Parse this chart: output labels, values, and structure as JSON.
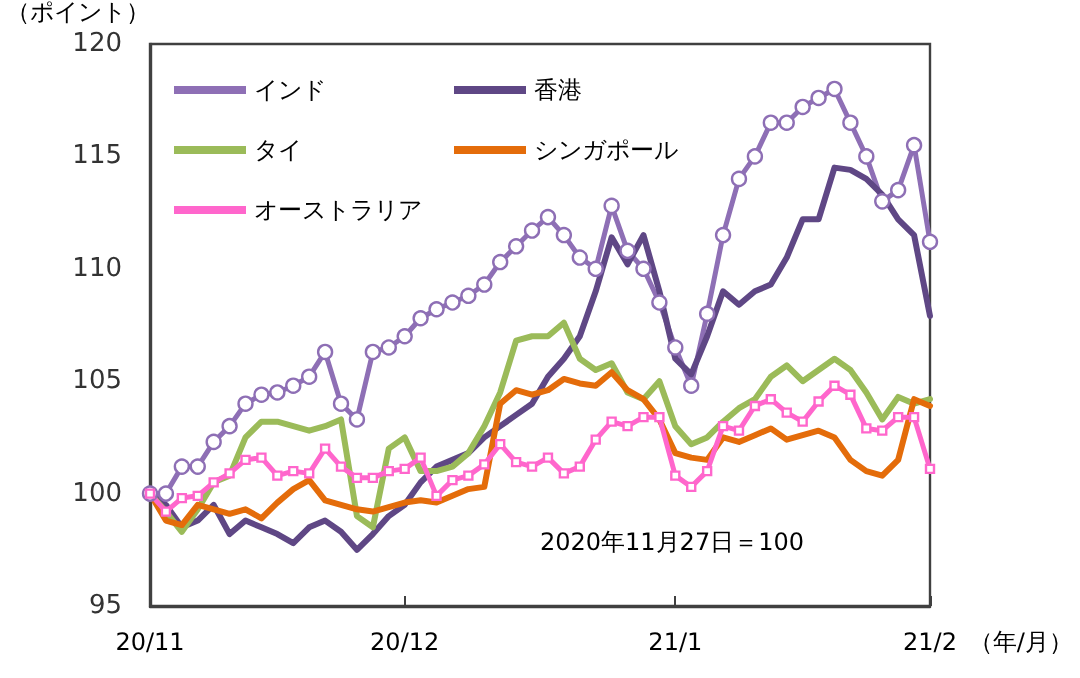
{
  "chart_data": {
    "type": "line",
    "ylabel": "（ポイント）",
    "xlabel": "（年/月）",
    "annotations": [
      "2020年11月27日＝100"
    ],
    "categories": [
      "20/11",
      null,
      null,
      null,
      null,
      null,
      null,
      null,
      null,
      null,
      null,
      null,
      null,
      null,
      null,
      null,
      "20/12",
      null,
      null,
      null,
      null,
      null,
      null,
      null,
      null,
      null,
      null,
      null,
      null,
      null,
      null,
      null,
      null,
      "21/1",
      null,
      null,
      null,
      null,
      null,
      null,
      null,
      null,
      null,
      null,
      null,
      null,
      null,
      null,
      null,
      "21/2"
    ],
    "ylim": [
      95,
      120
    ],
    "yticks": [
      95,
      100,
      105,
      110,
      115,
      120
    ],
    "grid": false,
    "legend": "top left",
    "line_style": "solid",
    "series": [
      {
        "name": "インド",
        "color": "#8e6fb5",
        "marker": "circle",
        "values": [
          100,
          100,
          101.2,
          101.2,
          102.3,
          103,
          104,
          104.4,
          104.5,
          104.8,
          105.2,
          106.3,
          104,
          103.3,
          106.3,
          106.5,
          107,
          107.8,
          108.2,
          108.5,
          108.8,
          109.3,
          110.3,
          111,
          111.7,
          112.3,
          111.5,
          110.5,
          110,
          112.8,
          110.8,
          110,
          108.5,
          106.5,
          104.8,
          108,
          111.5,
          114,
          115,
          116.5,
          116.5,
          117.2,
          117.6,
          118,
          116.5,
          115,
          113,
          113.5,
          115.5,
          111.2
        ]
      },
      {
        "name": "香港",
        "color": "#5f4785",
        "marker": "none",
        "values": [
          100,
          99.5,
          98.5,
          98.8,
          99.5,
          98.2,
          98.8,
          98.5,
          98.2,
          97.8,
          98.5,
          98.8,
          98.3,
          97.5,
          98.2,
          99,
          99.5,
          100.5,
          101.2,
          101.5,
          101.8,
          102.5,
          103,
          103.5,
          104,
          105.2,
          106,
          107,
          109,
          111.4,
          110.2,
          111.5,
          109,
          106,
          105.3,
          107,
          109,
          108.4,
          109,
          109.3,
          110.5,
          112.2,
          112.2,
          114.5,
          114.4,
          114,
          113.3,
          112.2,
          111.5,
          107.9
        ]
      },
      {
        "name": "タイ",
        "color": "#9bbb59",
        "marker": "none",
        "values": [
          100,
          99.2,
          98.3,
          99.3,
          100.5,
          100.8,
          102.5,
          103.2,
          103.2,
          103,
          102.8,
          103,
          103.3,
          99,
          98.5,
          102,
          102.5,
          101,
          101,
          101.2,
          101.8,
          103,
          104.5,
          106.8,
          107,
          107,
          107.6,
          106,
          105.5,
          105.8,
          104.5,
          104.2,
          105,
          103,
          102.2,
          102.5,
          103.2,
          103.8,
          104.2,
          105.2,
          105.7,
          105,
          105.5,
          106,
          105.5,
          104.5,
          103.3,
          104.3,
          104,
          104.2
        ]
      },
      {
        "name": "シンガポール",
        "color": "#e46c0a",
        "marker": "none",
        "values": [
          100,
          98.8,
          98.6,
          99.5,
          99.3,
          99.1,
          99.3,
          98.9,
          99.6,
          100.2,
          100.6,
          99.7,
          99.5,
          99.3,
          99.2,
          99.4,
          99.6,
          99.7,
          99.6,
          99.9,
          100.2,
          100.3,
          104,
          104.6,
          104.4,
          104.6,
          105.1,
          104.9,
          104.8,
          105.4,
          104.6,
          104.2,
          103.3,
          101.8,
          101.6,
          101.5,
          102.5,
          102.3,
          102.6,
          102.9,
          102.4,
          102.6,
          102.8,
          102.5,
          101.5,
          101,
          100.8,
          101.5,
          104.2,
          103.9
        ]
      },
      {
        "name": "オーストラリア",
        "color": "#ff66cc",
        "marker": "square",
        "values": [
          100,
          99.2,
          99.8,
          99.9,
          100.5,
          100.9,
          101.5,
          101.6,
          100.8,
          101,
          100.9,
          102,
          101.2,
          100.7,
          100.7,
          101,
          101.1,
          101.6,
          99.9,
          100.6,
          100.8,
          101.3,
          102.2,
          101.4,
          101.2,
          101.6,
          100.9,
          101.2,
          102.4,
          103.2,
          103,
          103.4,
          103.4,
          100.8,
          100.3,
          101,
          103,
          102.8,
          103.9,
          104.2,
          103.6,
          103.2,
          104.1,
          104.8,
          104.4,
          102.9,
          102.8,
          103.4,
          103.4,
          101.1
        ]
      }
    ]
  }
}
